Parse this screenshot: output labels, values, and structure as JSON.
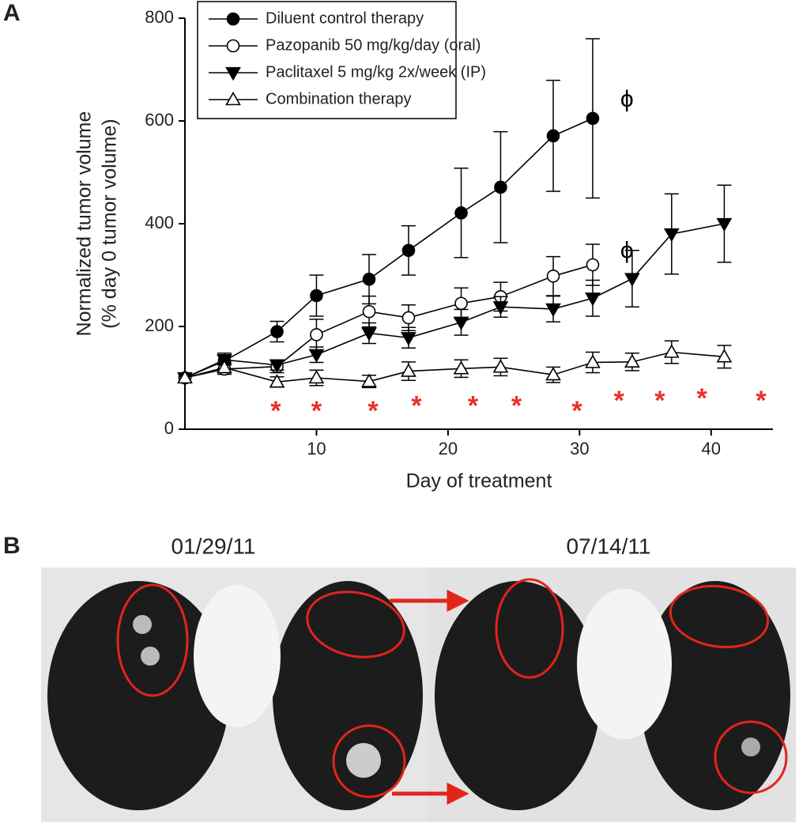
{
  "panel_labels": [
    "A",
    "B"
  ],
  "chart_data": {
    "type": "line",
    "xlabel": "Day of treatment",
    "ylabel": [
      "Normalized tumor volume",
      "(% day 0 tumor volume)"
    ],
    "xlim": [
      0,
      44.7
    ],
    "ylim": [
      0,
      800
    ],
    "xticks": [
      10,
      20,
      30,
      40
    ],
    "yticks": [
      0,
      200,
      400,
      600,
      800
    ],
    "legend": "upper left",
    "series": [
      {
        "name": "Diluent control therapy",
        "color": "#000000",
        "marker": "circle",
        "marker_fill": "#000000",
        "x": [
          0,
          3,
          7,
          10,
          14,
          17,
          21,
          24,
          28,
          31
        ],
        "values": [
          100,
          133,
          190,
          260,
          292,
          348,
          421,
          471,
          571,
          605
        ],
        "errors": [
          8,
          15,
          20,
          40,
          48,
          48,
          87,
          108,
          108,
          155
        ]
      },
      {
        "name": "Pazopanib 50 mg/kg/day (oral)",
        "color": "#000000",
        "marker": "circle",
        "marker_fill": "#ffffff",
        "x": [
          0,
          3,
          7,
          10,
          14,
          17,
          21,
          24,
          28,
          31
        ],
        "values": [
          100,
          117,
          122,
          184,
          229,
          217,
          245,
          258,
          298,
          320
        ],
        "errors": [
          8,
          10,
          12,
          30,
          30,
          25,
          30,
          28,
          38,
          40
        ]
      },
      {
        "name": "Paclitaxel 5 mg/kg 2x/week (IP)",
        "color": "#000000",
        "marker": "triangle-down",
        "marker_fill": "#000000",
        "x": [
          0,
          3,
          7,
          10,
          14,
          17,
          21,
          24,
          28,
          31,
          34,
          37,
          41
        ],
        "values": [
          100,
          135,
          125,
          145,
          187,
          178,
          208,
          238,
          234,
          255,
          293,
          380,
          400
        ],
        "errors": [
          8,
          10,
          10,
          15,
          20,
          20,
          25,
          20,
          25,
          35,
          55,
          78,
          75
        ]
      },
      {
        "name": "Combination therapy",
        "color": "#000000",
        "marker": "triangle-up",
        "marker_fill": "#ffffff",
        "x": [
          0,
          3,
          7,
          10,
          14,
          17,
          21,
          24,
          28,
          31,
          34,
          37,
          41
        ],
        "values": [
          100,
          120,
          92,
          100,
          93,
          113,
          118,
          121,
          106,
          130,
          131,
          150,
          141
        ],
        "errors": [
          8,
          10,
          10,
          15,
          12,
          18,
          17,
          17,
          15,
          20,
          17,
          22,
          22
        ]
      }
    ],
    "annotations": [
      {
        "text": "ϕ",
        "x": 33.6,
        "y": 640,
        "color": "#000000"
      },
      {
        "text": "ϕ",
        "x": 33.6,
        "y": 345,
        "color": "#000000"
      },
      {
        "text": "*",
        "x": 6.9,
        "y": 48,
        "color": "#e8302a"
      },
      {
        "text": "*",
        "x": 10,
        "y": 48,
        "color": "#e8302a"
      },
      {
        "text": "*",
        "x": 14.3,
        "y": 48,
        "color": "#e8302a"
      },
      {
        "text": "*",
        "x": 17.6,
        "y": 58,
        "color": "#e8302a"
      },
      {
        "text": "*",
        "x": 21.9,
        "y": 58,
        "color": "#e8302a"
      },
      {
        "text": "*",
        "x": 25.2,
        "y": 58,
        "color": "#e8302a"
      },
      {
        "text": "*",
        "x": 29.8,
        "y": 48,
        "color": "#e8302a"
      },
      {
        "text": "*",
        "x": 33,
        "y": 68,
        "color": "#e8302a"
      },
      {
        "text": "*",
        "x": 36.1,
        "y": 68,
        "color": "#e8302a"
      },
      {
        "text": "*",
        "x": 39.3,
        "y": 72,
        "color": "#e8302a"
      },
      {
        "text": "*",
        "x": 43.8,
        "y": 68,
        "color": "#e8302a"
      }
    ]
  },
  "ct_dates": [
    "01/29/11",
    "07/14/11"
  ]
}
